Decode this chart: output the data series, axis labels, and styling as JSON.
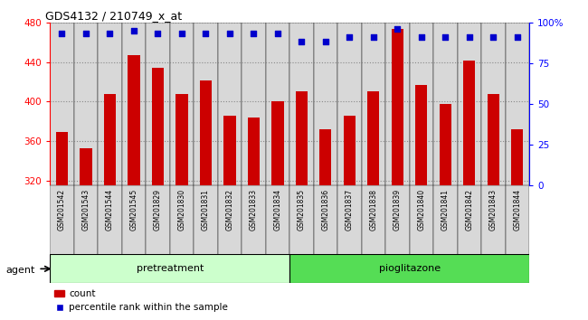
{
  "title": "GDS4132 / 210749_x_at",
  "samples": [
    "GSM201542",
    "GSM201543",
    "GSM201544",
    "GSM201545",
    "GSM201829",
    "GSM201830",
    "GSM201831",
    "GSM201832",
    "GSM201833",
    "GSM201834",
    "GSM201835",
    "GSM201836",
    "GSM201837",
    "GSM201838",
    "GSM201839",
    "GSM201840",
    "GSM201841",
    "GSM201842",
    "GSM201843",
    "GSM201844"
  ],
  "bar_values": [
    369,
    353,
    408,
    447,
    434,
    408,
    421,
    386,
    384,
    400,
    410,
    372,
    386,
    410,
    473,
    417,
    398,
    441,
    408,
    372
  ],
  "percentile_values": [
    93,
    93,
    93,
    95,
    93,
    93,
    93,
    93,
    93,
    93,
    88,
    88,
    91,
    91,
    96,
    91,
    91,
    91,
    91,
    91
  ],
  "ylim_left": [
    315,
    480
  ],
  "ylim_right": [
    0,
    100
  ],
  "yticks_left": [
    320,
    360,
    400,
    440,
    480
  ],
  "yticks_right_vals": [
    0,
    25,
    50,
    75,
    100
  ],
  "yticks_right_labels": [
    "0",
    "25",
    "50",
    "75",
    "100%"
  ],
  "bar_color": "#cc0000",
  "dot_color": "#0000cc",
  "n_pretreatment": 10,
  "n_pioglitazone": 10,
  "pretreatment_color": "#ccffcc",
  "pioglitazone_color": "#55dd55",
  "agent_label": "agent",
  "pretreatment_label": "pretreatment",
  "pioglitazone_label": "pioglitazone",
  "legend_count": "count",
  "legend_percentile": "percentile rank within the sample",
  "grid_color": "#888888",
  "cell_bg_color": "#d8d8d8",
  "plot_bg": "#ffffff"
}
